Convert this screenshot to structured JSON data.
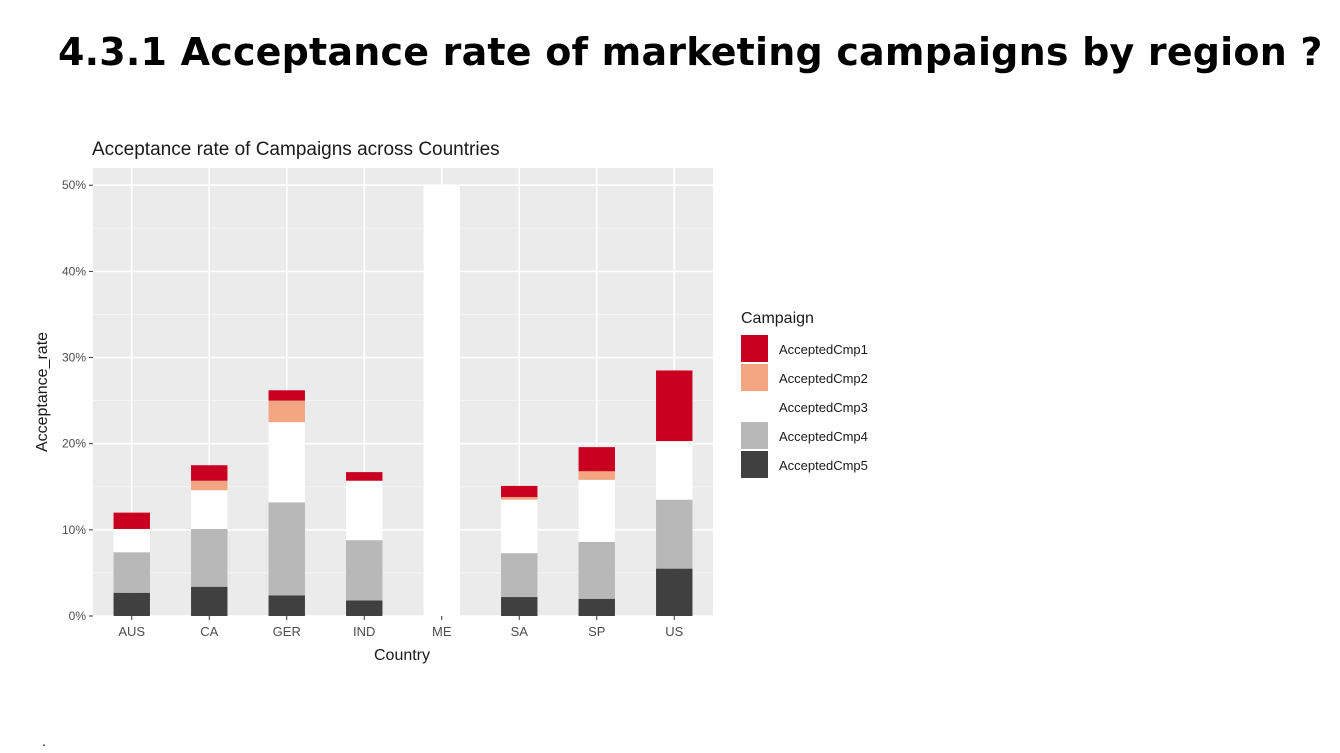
{
  "slide": {
    "title": "4.3.1 Acceptance rate of marketing campaigns by region ?",
    "footer_mark": "."
  },
  "chart_data": {
    "type": "bar",
    "stacked": true,
    "title": "Acceptance rate of Campaigns across Countries",
    "xlabel": "Country",
    "ylabel": "Acceptance_rate",
    "ylim": [
      0,
      52
    ],
    "yticks": [
      0,
      10,
      20,
      30,
      40,
      50
    ],
    "ytick_labels": [
      "0%",
      "10%",
      "20%",
      "30%",
      "40%",
      "50%"
    ],
    "grid": true,
    "legend_title": "Campaign",
    "legend_position": "right",
    "categories": [
      "AUS",
      "CA",
      "GER",
      "IND",
      "ME",
      "SA",
      "SP",
      "US"
    ],
    "series": [
      {
        "name": "AcceptedCmp5",
        "color": "#404040",
        "values": [
          2.7,
          3.4,
          2.4,
          1.8,
          0,
          2.2,
          2.0,
          5.5
        ]
      },
      {
        "name": "AcceptedCmp4",
        "color": "#b8b8b8",
        "values": [
          4.7,
          6.7,
          10.8,
          7.0,
          0,
          5.1,
          6.6,
          8.0
        ]
      },
      {
        "name": "AcceptedCmp3",
        "color": "#ffffff",
        "values": [
          2.7,
          4.5,
          9.3,
          6.9,
          50.0,
          6.2,
          7.2,
          6.8
        ]
      },
      {
        "name": "AcceptedCmp2",
        "color": "#f4a582",
        "values": [
          0,
          1.1,
          2.5,
          0,
          0,
          0.3,
          1.0,
          0
        ]
      },
      {
        "name": "AcceptedCmp1",
        "color": "#ca0020",
        "values": [
          1.9,
          1.8,
          1.2,
          1.0,
          0,
          1.3,
          2.8,
          8.2
        ]
      }
    ],
    "legend_order": [
      "AcceptedCmp1",
      "AcceptedCmp2",
      "AcceptedCmp3",
      "AcceptedCmp4",
      "AcceptedCmp5"
    ]
  }
}
